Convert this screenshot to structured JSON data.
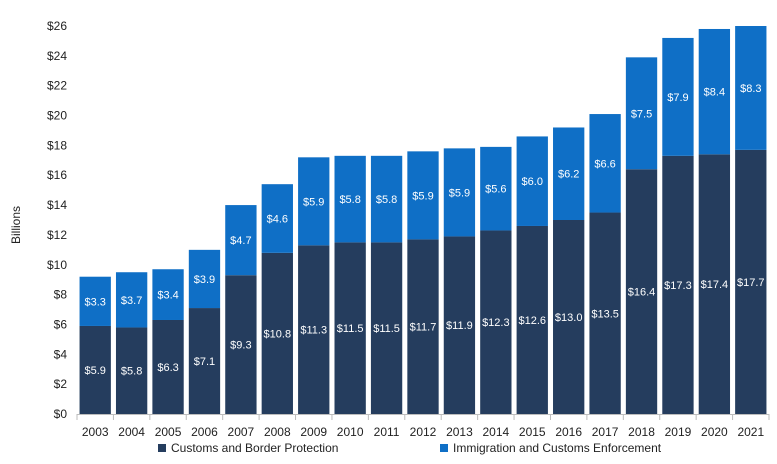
{
  "chart_data": {
    "type": "bar",
    "stacked": true,
    "title": "",
    "xlabel": "",
    "ylabel": "Billions",
    "ylim": [
      0,
      26
    ],
    "y_ticks": [
      "$0",
      "$2",
      "$4",
      "$6",
      "$8",
      "$10",
      "$12",
      "$14",
      "$16",
      "$18",
      "$20",
      "$22",
      "$24",
      "$26"
    ],
    "y_tick_values": [
      0,
      2,
      4,
      6,
      8,
      10,
      12,
      14,
      16,
      18,
      20,
      22,
      24,
      26
    ],
    "grid": false,
    "legend_position": "bottom",
    "categories": [
      "2003",
      "2004",
      "2005",
      "2006",
      "2007",
      "2008",
      "2009",
      "2010",
      "2011",
      "2012",
      "2013",
      "2014",
      "2015",
      "2016",
      "2017",
      "2018",
      "2019",
      "2020",
      "2021"
    ],
    "series": [
      {
        "name": "Customs and Border Protection",
        "color": "#253d5e",
        "values": [
          5.9,
          5.8,
          6.3,
          7.1,
          9.3,
          10.8,
          11.3,
          11.5,
          11.5,
          11.7,
          11.9,
          12.3,
          12.6,
          13.0,
          13.5,
          16.4,
          17.3,
          17.4,
          17.7
        ],
        "labels": [
          "$5.9",
          "$5.8",
          "$6.3",
          "$7.1",
          "$9.3",
          "$10.8",
          "$11.3",
          "$11.5",
          "$11.5",
          "$11.7",
          "$11.9",
          "$12.3",
          "$12.6",
          "$13.0",
          "$13.5",
          "$16.4",
          "$17.3",
          "$17.4",
          "$17.7"
        ]
      },
      {
        "name": "Immigration and Customs Enforcement",
        "color": "#0f6fc6",
        "values": [
          3.3,
          3.7,
          3.4,
          3.9,
          4.7,
          4.6,
          5.9,
          5.8,
          5.8,
          5.9,
          5.9,
          5.6,
          6.0,
          6.2,
          6.6,
          7.5,
          7.9,
          8.4,
          8.3
        ],
        "labels": [
          "$3.3",
          "$3.7",
          "$3.4",
          "$3.9",
          "$4.7",
          "$4.6",
          "$5.9",
          "$5.8",
          "$5.8",
          "$5.9",
          "$5.9",
          "$5.6",
          "$6.0",
          "$6.2",
          "$6.6",
          "$7.5",
          "$7.9",
          "$8.4",
          "$8.3"
        ]
      }
    ]
  }
}
